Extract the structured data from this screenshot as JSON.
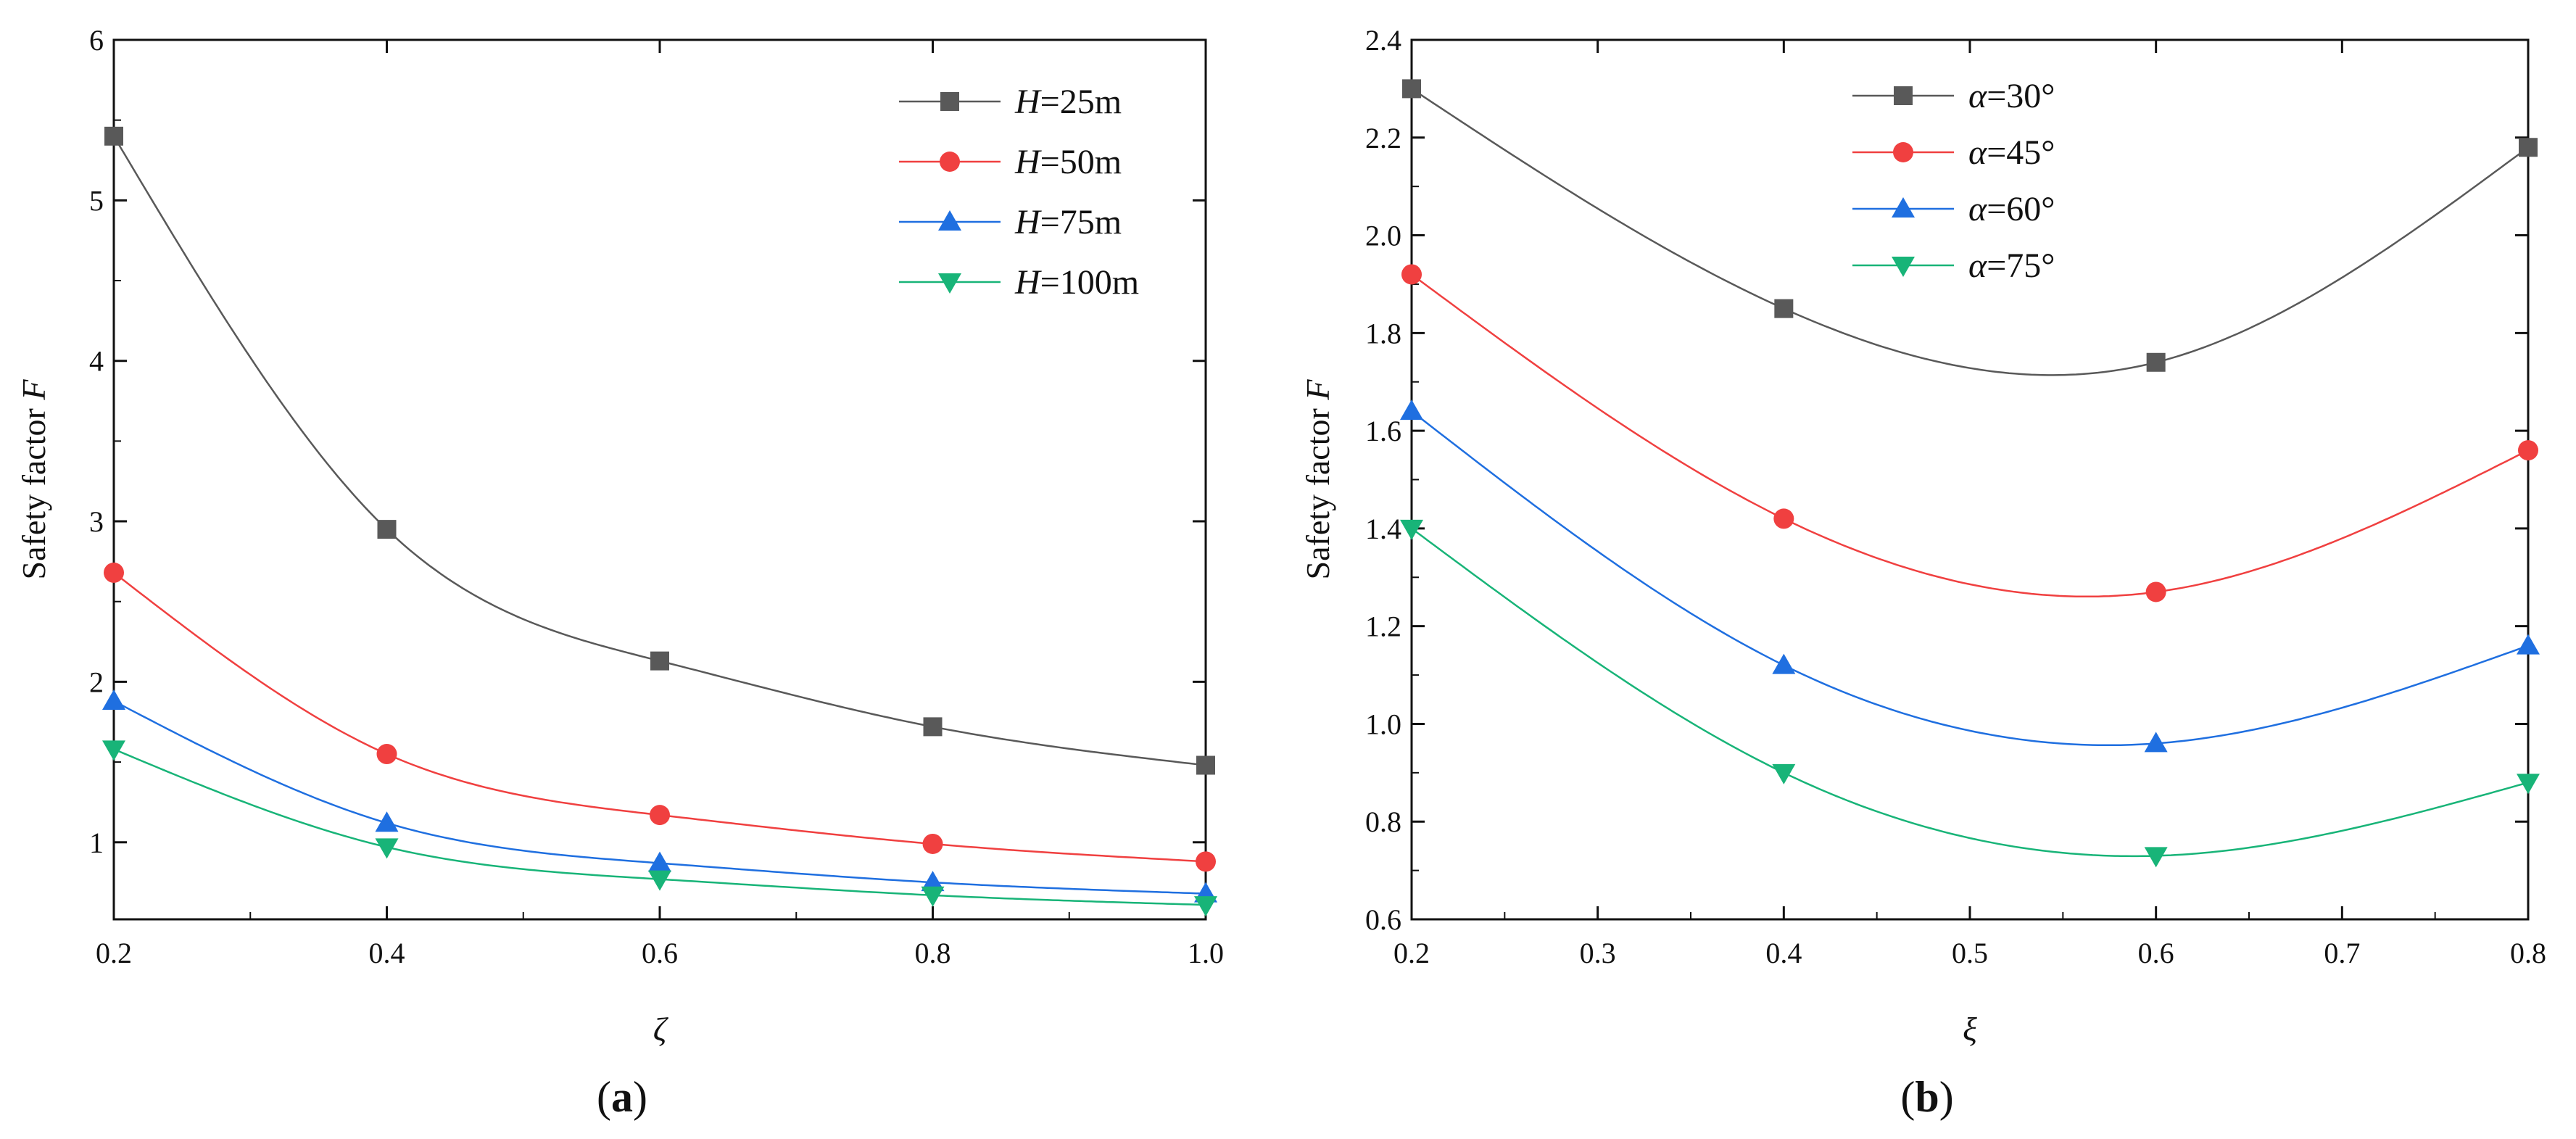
{
  "figure": {
    "panel_labels": [
      "a",
      "b"
    ]
  },
  "chart_data": [
    {
      "type": "line",
      "panel": "a",
      "title": "",
      "xlabel": "ζ",
      "ylabel": "Safety factor F",
      "ylabel_prefix": "Safety factor ",
      "ylabel_var": "F",
      "xlim": [
        0.2,
        1.0
      ],
      "ylim": [
        0.52,
        6.0
      ],
      "xticks": [
        0.2,
        0.4,
        0.6,
        0.8,
        1.0
      ],
      "xtick_labels": [
        "0.2",
        "0.4",
        "0.6",
        "0.8",
        "1.0"
      ],
      "yticks": [
        1,
        2,
        3,
        4,
        5,
        6
      ],
      "ytick_labels": [
        "1",
        "2",
        "3",
        "4",
        "5",
        "6"
      ],
      "grid": false,
      "legend_position": "top-right",
      "x": [
        0.2,
        0.4,
        0.6,
        0.8,
        1.0
      ],
      "series": [
        {
          "name": "H=25m",
          "name_var": "H",
          "name_rest": "=25m",
          "color": "#595959",
          "marker": "square",
          "values": [
            5.4,
            2.95,
            2.13,
            1.72,
            1.48
          ]
        },
        {
          "name": "H=50m",
          "name_var": "H",
          "name_rest": "=50m",
          "color": "#f04040",
          "marker": "circle",
          "values": [
            2.68,
            1.55,
            1.17,
            0.99,
            0.88
          ]
        },
        {
          "name": "H=75m",
          "name_var": "H",
          "name_rest": "=75m",
          "color": "#1f6fe0",
          "marker": "triangle-up",
          "values": [
            1.88,
            1.12,
            0.87,
            0.75,
            0.68
          ]
        },
        {
          "name": "H=100m",
          "name_var": "H",
          "name_rest": "=100m",
          "color": "#18b478",
          "marker": "triangle-down",
          "values": [
            1.58,
            0.97,
            0.77,
            0.67,
            0.61
          ]
        }
      ]
    },
    {
      "type": "line",
      "panel": "b",
      "title": "",
      "xlabel": "ξ",
      "ylabel": "Safety factor F",
      "ylabel_prefix": "Safety factor ",
      "ylabel_var": "F",
      "xlim": [
        0.2,
        0.8
      ],
      "ylim": [
        0.6,
        2.4
      ],
      "xticks": [
        0.2,
        0.3,
        0.4,
        0.5,
        0.6,
        0.7,
        0.8
      ],
      "xtick_labels": [
        "0.2",
        "0.3",
        "0.4",
        "0.5",
        "0.6",
        "0.7",
        "0.8"
      ],
      "yticks": [
        0.6,
        0.8,
        1.0,
        1.2,
        1.4,
        1.6,
        1.8,
        2.0,
        2.2,
        2.4
      ],
      "ytick_labels": [
        "0.6",
        "0.8",
        "1.0",
        "1.2",
        "1.4",
        "1.6",
        "1.8",
        "2.0",
        "2.2",
        "2.4"
      ],
      "grid": false,
      "legend_position": "top-center",
      "x": [
        0.2,
        0.4,
        0.6,
        0.8
      ],
      "series": [
        {
          "name": "α=30°",
          "name_var": "α",
          "name_rest": "=30°",
          "color": "#595959",
          "marker": "square",
          "values": [
            2.3,
            1.85,
            1.74,
            2.18
          ]
        },
        {
          "name": "α=45°",
          "name_var": "α",
          "name_rest": "=45°",
          "color": "#f04040",
          "marker": "circle",
          "values": [
            1.92,
            1.42,
            1.27,
            1.56
          ]
        },
        {
          "name": "α=60°",
          "name_var": "α",
          "name_rest": "=60°",
          "color": "#1f6fe0",
          "marker": "triangle-up",
          "values": [
            1.64,
            1.12,
            0.96,
            1.16
          ]
        },
        {
          "name": "α=75°",
          "name_var": "α",
          "name_rest": "=75°",
          "color": "#18b478",
          "marker": "triangle-down",
          "values": [
            1.4,
            0.9,
            0.73,
            0.88
          ]
        }
      ]
    }
  ]
}
